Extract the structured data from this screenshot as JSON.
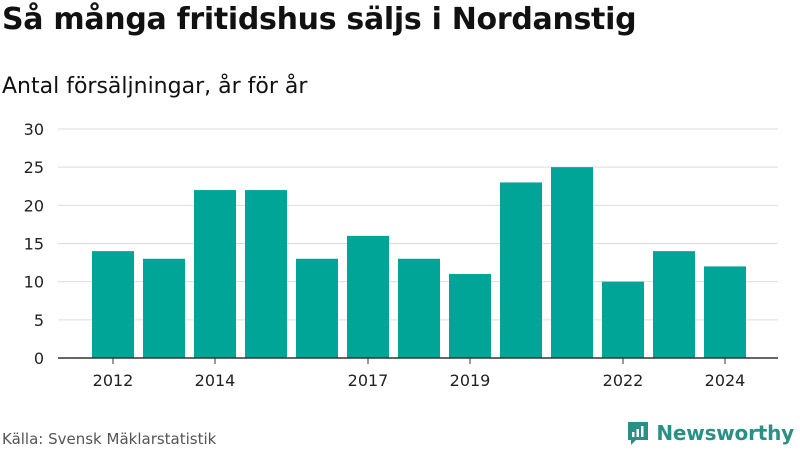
{
  "chart_data": {
    "type": "bar",
    "title": "Så många fritidshus säljs i Nordanstig",
    "subtitle": "Antal försäljningar, år för år",
    "categories": [
      "2012",
      "2013",
      "2014",
      "2015",
      "2016",
      "2017",
      "2018",
      "2019",
      "2020",
      "2021",
      "2022",
      "2023",
      "2024"
    ],
    "values": [
      14,
      13,
      22,
      22,
      13,
      16,
      13,
      11,
      23,
      25,
      10,
      14,
      12
    ],
    "x_tick_labels": [
      "2012",
      "2014",
      "2017",
      "2019",
      "2022",
      "2024"
    ],
    "y_ticks": [
      0,
      5,
      10,
      15,
      20,
      25,
      30
    ],
    "ylim": [
      0,
      30
    ],
    "bar_color": "#00a598",
    "grid": true
  },
  "footer": {
    "source": "Källa: Svensk Mäklarstatistik",
    "brand": "Newsworthy",
    "brand_color": "#2a8f85"
  }
}
